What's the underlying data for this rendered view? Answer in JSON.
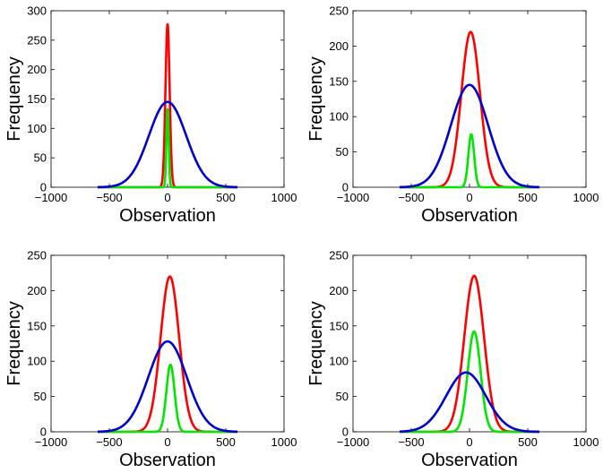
{
  "chart_data": [
    {
      "type": "line",
      "xlabel": "Observation",
      "ylabel": "Frequency",
      "xlim": [
        -1000,
        1000
      ],
      "ylim": [
        0,
        300
      ],
      "xticks": [
        "−1000",
        "−500",
        "0",
        "500",
        "1000"
      ],
      "yticks": [
        "0",
        "50",
        "100",
        "150",
        "200",
        "250",
        "300"
      ],
      "series": [
        {
          "color": "#ff0000",
          "shape": "gaussian",
          "peak": 277,
          "center": 0,
          "sigma": 18,
          "x_range": [
            -600,
            600
          ]
        },
        {
          "color": "#00e600",
          "shape": "gaussian",
          "peak": 133,
          "center": 0,
          "sigma": 10,
          "x_range": [
            -600,
            600
          ]
        },
        {
          "color": "#0000cc",
          "shape": "gaussian",
          "peak": 145,
          "center": 0,
          "sigma": 160,
          "x_range": [
            -600,
            600
          ]
        }
      ]
    },
    {
      "type": "line",
      "xlabel": "Observation",
      "ylabel": "Frequency",
      "xlim": [
        -1000,
        1000
      ],
      "ylim": [
        0,
        250
      ],
      "xticks": [
        "−1000",
        "−500",
        "0",
        "500",
        "1000"
      ],
      "yticks": [
        "0",
        "50",
        "100",
        "150",
        "200",
        "250"
      ],
      "series": [
        {
          "color": "#ff0000",
          "shape": "gaussian",
          "peak": 220,
          "center": 10,
          "sigma": 80,
          "x_range": [
            -600,
            600
          ]
        },
        {
          "color": "#00e600",
          "shape": "gaussian",
          "peak": 75,
          "center": 15,
          "sigma": 25,
          "x_range": [
            -600,
            600
          ]
        },
        {
          "color": "#0000cc",
          "shape": "gaussian",
          "peak": 145,
          "center": 0,
          "sigma": 160,
          "x_range": [
            -600,
            600
          ]
        }
      ]
    },
    {
      "type": "line",
      "xlabel": "Observation",
      "ylabel": "Frequency",
      "xlim": [
        -1000,
        1000
      ],
      "ylim": [
        0,
        250
      ],
      "xticks": [
        "−1000",
        "−500",
        "0",
        "500",
        "1000"
      ],
      "yticks": [
        "0",
        "50",
        "100",
        "150",
        "200",
        "250"
      ],
      "series": [
        {
          "color": "#ff0000",
          "shape": "gaussian",
          "peak": 220,
          "center": 20,
          "sigma": 80,
          "x_range": [
            -600,
            600
          ]
        },
        {
          "color": "#00e600",
          "shape": "gaussian",
          "peak": 95,
          "center": 25,
          "sigma": 35,
          "x_range": [
            -600,
            600
          ]
        },
        {
          "color": "#0000cc",
          "shape": "gaussian",
          "peak": 128,
          "center": 0,
          "sigma": 165,
          "x_range": [
            -600,
            600
          ]
        }
      ]
    },
    {
      "type": "line",
      "xlabel": "Observation",
      "ylabel": "Frequency",
      "xlim": [
        -1000,
        1000
      ],
      "ylim": [
        0,
        250
      ],
      "xticks": [
        "−1000",
        "−500",
        "0",
        "500",
        "1000"
      ],
      "yticks": [
        "0",
        "50",
        "100",
        "150",
        "200",
        "250"
      ],
      "series": [
        {
          "color": "#ff0000",
          "shape": "gaussian",
          "peak": 221,
          "center": 40,
          "sigma": 85,
          "x_range": [
            -600,
            600
          ]
        },
        {
          "color": "#00e600",
          "shape": "gaussian",
          "peak": 142,
          "center": 40,
          "sigma": 55,
          "x_range": [
            -600,
            600
          ]
        },
        {
          "color": "#0000cc",
          "shape": "gaussian",
          "peak": 84,
          "center": -30,
          "sigma": 170,
          "x_range": [
            -600,
            600
          ]
        }
      ]
    }
  ]
}
